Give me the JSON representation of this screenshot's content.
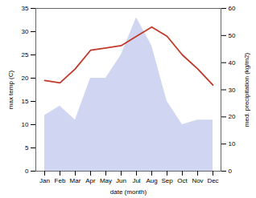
{
  "chart_data": {
    "type": "line",
    "xlabel": "date (month)",
    "ylabel": "max temp (C)",
    "y2label": "med. precipitation (kg/m2)",
    "categories": [
      "Jan",
      "Feb",
      "Mar",
      "Apr",
      "May",
      "Jun",
      "Jul",
      "Aug",
      "Sep",
      "Oct",
      "Nov",
      "Dec"
    ],
    "series": [
      {
        "type": "area",
        "color": "#aab4e8",
        "values": [
          12,
          14,
          11,
          20,
          20,
          25,
          33,
          27,
          15,
          10,
          11,
          11
        ]
      },
      {
        "type": "line",
        "color": "#c0392b",
        "values": [
          19.5,
          19.0,
          22.0,
          26.0,
          26.5,
          27.0,
          29.0,
          31.0,
          29.0,
          25.0,
          22.0,
          18.5
        ]
      }
    ],
    "ylim": [
      0,
      35
    ],
    "yticks": [
      0,
      5,
      10,
      15,
      20,
      25,
      30,
      35
    ],
    "y2lim": [
      0,
      60
    ],
    "y2ticks": [
      0,
      10,
      20,
      30,
      40,
      50,
      60
    ]
  }
}
